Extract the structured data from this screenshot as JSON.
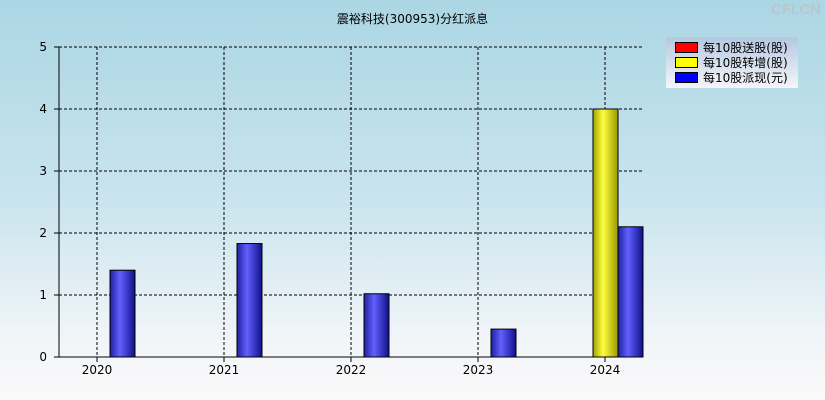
{
  "chart_data": {
    "type": "bar",
    "title": "震裕科技(300953)分红派息",
    "categories": [
      "2020",
      "2021",
      "2022",
      "2023",
      "2024"
    ],
    "series": [
      {
        "name": "每10股送股(股)",
        "color": "#ff0000",
        "values": [
          0,
          0,
          0,
          0,
          0
        ]
      },
      {
        "name": "每10股转增(股)",
        "color": "#ffff00",
        "values": [
          0,
          0,
          0,
          0,
          4
        ]
      },
      {
        "name": "每10股派现(元)",
        "color": "#0000ff",
        "values": [
          1.4,
          1.83,
          1.02,
          0.45,
          2.1
        ]
      }
    ],
    "ylim": [
      0,
      5
    ],
    "yticks": [
      "0",
      "1",
      "2",
      "3",
      "4",
      "5"
    ],
    "grid": true,
    "legend": "top-right"
  },
  "watermark": "CFi.CN"
}
